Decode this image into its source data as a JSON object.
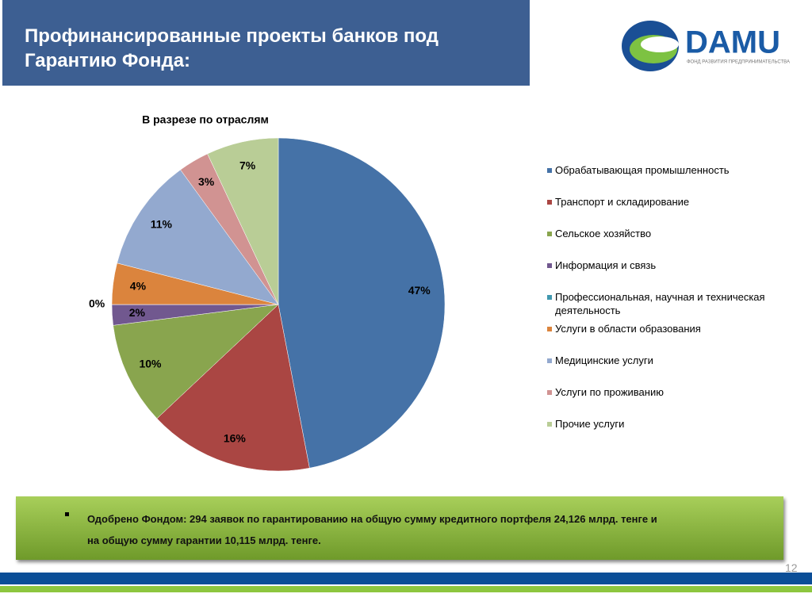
{
  "header": {
    "title": "Профинансированные проекты банков под Гарантию Фонда:"
  },
  "logo": {
    "name": "DAMU",
    "tagline": "ФОНД РАЗВИТИЯ ПРЕДПРИНИМАТЕЛЬСТВА"
  },
  "chart_data": {
    "type": "pie",
    "title": "В разрезе по отраслям",
    "categories": [
      "Обрабатывающая промышленность",
      "Транспорт и складирование",
      "Сельское хозяйство",
      "Информация и связь",
      "Профессиональная, научная и техническая деятельность",
      "Услуги в области образования",
      "Медицинские услуги",
      "Услуги по проживанию",
      "Прочие услуги"
    ],
    "values": [
      47,
      16,
      10,
      2,
      0,
      4,
      11,
      3,
      7
    ],
    "value_labels": [
      "47%",
      "16%",
      "10%",
      "2%",
      "0%",
      "4%",
      "11%",
      "3%",
      "7%"
    ],
    "colors": [
      "#4572a7",
      "#aa4643",
      "#89a54e",
      "#71588f",
      "#4198af",
      "#db843d",
      "#93a9cf",
      "#d19392",
      "#b9cd96"
    ],
    "legend": "right"
  },
  "note": {
    "lines": [
      "Одобрено Фондом: 294 заявок по гарантированию на общую сумму кредитного портфеля 24,126 млрд. тенге и",
      "на общую сумму гарантии 10,115 млрд. тенге."
    ]
  },
  "page_number": "12"
}
